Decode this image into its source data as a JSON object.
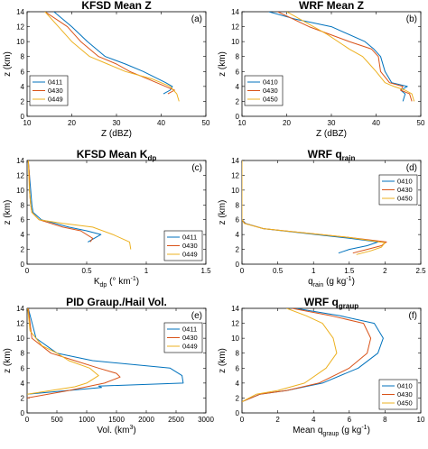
{
  "figure": {
    "colors": {
      "blue": "#0072bd",
      "red": "#d95319",
      "yellow": "#edb120"
    }
  },
  "chart_data": [
    {
      "type": "line",
      "panel_label": "(a)",
      "title": {
        "main": "KFSD Mean Z",
        "sub": "",
        "accent": "macron"
      },
      "xlabel": {
        "pre": "Z (dBZ)",
        "sub": "",
        "post": ""
      },
      "ylabel": "z (km)",
      "xlim": [
        10,
        50
      ],
      "ylim": [
        0,
        14
      ],
      "xticks": [
        10,
        20,
        30,
        40,
        50
      ],
      "yticks": [
        0,
        2,
        4,
        6,
        8,
        10,
        12,
        14
      ],
      "xtick_labels": [
        "10",
        "20",
        "30",
        "40",
        "50"
      ],
      "ytick_labels": [
        "0",
        "2",
        "4",
        "6",
        "8",
        "10",
        "12",
        "14"
      ],
      "legend_position": "bottom-left",
      "series": [
        {
          "name": "0411",
          "color": "#0072bd",
          "x": [
            40.5,
            42,
            42.5,
            41,
            36,
            32,
            27.5,
            23.5,
            20,
            16
          ],
          "y": [
            3,
            3.5,
            4,
            4.5,
            6,
            7,
            8,
            10,
            12,
            14
          ]
        },
        {
          "name": "0430",
          "color": "#d95319",
          "x": [
            41.5,
            43,
            41,
            37,
            33,
            30,
            26,
            22,
            19,
            14
          ],
          "y": [
            3,
            3.5,
            4,
            5,
            6,
            7,
            8,
            10,
            12,
            14
          ]
        },
        {
          "name": "0449",
          "color": "#edb120",
          "x": [
            44,
            43.5,
            42,
            38,
            32,
            28,
            24,
            20,
            17,
            14
          ],
          "y": [
            2,
            3,
            4,
            5,
            6,
            7,
            8,
            10,
            12,
            14
          ]
        }
      ]
    },
    {
      "type": "line",
      "panel_label": "(b)",
      "title": {
        "main": "WRF Mean Z",
        "sub": "",
        "accent": "macron"
      },
      "xlabel": {
        "pre": "Z (dBZ)",
        "sub": "",
        "post": ""
      },
      "ylabel": "z (km)",
      "xlim": [
        10,
        50
      ],
      "ylim": [
        0,
        14
      ],
      "xticks": [
        10,
        20,
        30,
        40,
        50
      ],
      "yticks": [
        0,
        2,
        4,
        6,
        8,
        10,
        12,
        14
      ],
      "xtick_labels": [
        "10",
        "20",
        "30",
        "40",
        "50"
      ],
      "ytick_labels": [
        "0",
        "2",
        "4",
        "6",
        "8",
        "10",
        "12",
        "14"
      ],
      "legend_position": "bottom-left",
      "series": [
        {
          "name": "0410",
          "color": "#0072bd",
          "x": [
            46,
            46.5,
            45.5,
            47,
            43.5,
            42,
            41,
            39.5,
            37.5,
            30,
            22,
            16
          ],
          "y": [
            2,
            3,
            3.5,
            4,
            4.5,
            6,
            8,
            9,
            10,
            12,
            13,
            14
          ]
        },
        {
          "name": "0430",
          "color": "#d95319",
          "x": [
            48,
            47.5,
            45.5,
            46,
            43,
            41,
            40.5,
            39,
            34,
            25,
            18
          ],
          "y": [
            2,
            3,
            3.5,
            4,
            4.5,
            6,
            8,
            9,
            10,
            12,
            14
          ]
        },
        {
          "name": "0450",
          "color": "#edb120",
          "x": [
            48.5,
            48,
            46.5,
            44,
            42,
            40,
            38.5,
            37,
            34,
            29,
            20
          ],
          "y": [
            2,
            3,
            3.5,
            4,
            4.5,
            6,
            7,
            8,
            9,
            11,
            14
          ]
        }
      ]
    },
    {
      "type": "line",
      "panel_label": "(c)",
      "title": {
        "main": "KFSD Mean K",
        "sub": "dp",
        "accent": ""
      },
      "xlabel": {
        "pre": "K",
        "sub": "dp",
        "post": " (° km",
        "sup": "-1",
        "tail": ")"
      },
      "ylabel": "z (km)",
      "xlim": [
        0,
        1.5
      ],
      "ylim": [
        0,
        14
      ],
      "xticks": [
        0,
        0.5,
        1,
        1.5
      ],
      "yticks": [
        0,
        2,
        4,
        6,
        8,
        10,
        12,
        14
      ],
      "xtick_labels": [
        "0",
        "0.5",
        "1",
        "1.5"
      ],
      "ytick_labels": [
        "0",
        "2",
        "4",
        "6",
        "8",
        "10",
        "12",
        "14"
      ],
      "legend_position": "bottom-right",
      "series": [
        {
          "name": "0411",
          "color": "#0072bd",
          "x": [
            0.51,
            0.62,
            0.5,
            0.35,
            0.12,
            0.05,
            0.04,
            0.03,
            0.02,
            0.01
          ],
          "y": [
            3,
            4,
            4.5,
            5,
            6,
            7,
            8,
            10,
            12,
            14
          ]
        },
        {
          "name": "0430",
          "color": "#d95319",
          "x": [
            0.53,
            0.55,
            0.45,
            0.3,
            0.1,
            0.04,
            0.03,
            0.02,
            0.02,
            0.01
          ],
          "y": [
            3,
            3.5,
            4.5,
            5,
            6,
            7,
            8,
            10,
            12,
            14
          ]
        },
        {
          "name": "0449",
          "color": "#edb120",
          "x": [
            0.87,
            0.86,
            0.72,
            0.55,
            0.3,
            0.1,
            0.04,
            0.03,
            0.02,
            0.01
          ],
          "y": [
            2,
            3,
            4,
            5,
            5.5,
            6,
            7,
            8,
            10,
            14
          ]
        }
      ]
    },
    {
      "type": "line",
      "panel_label": "(d)",
      "title": {
        "main": "WRF q",
        "sub": "rain",
        "accent": ""
      },
      "xlabel": {
        "pre": "q",
        "sub": "rain",
        "post": " (g kg",
        "sup": "-1",
        "tail": ")"
      },
      "ylabel": "z (km)",
      "xlim": [
        0,
        2.5
      ],
      "ylim": [
        0,
        14
      ],
      "xticks": [
        0,
        0.5,
        1,
        1.5,
        2,
        2.5
      ],
      "yticks": [
        0,
        2,
        4,
        6,
        8,
        10,
        12,
        14
      ],
      "xtick_labels": [
        "0",
        "0.5",
        "1",
        "1.5",
        "2",
        "2.5"
      ],
      "ytick_labels": [
        "0",
        "2",
        "4",
        "6",
        "8",
        "10",
        "12",
        "14"
      ],
      "legend_position": "top-right",
      "series": [
        {
          "name": "0410",
          "color": "#0072bd",
          "x": [
            1.35,
            1.5,
            1.75,
            1.9,
            1.5,
            0.3,
            0.05,
            0,
            0
          ],
          "y": [
            1.5,
            2,
            2.5,
            3,
            3.5,
            4.8,
            5.5,
            6,
            14
          ]
        },
        {
          "name": "0430",
          "color": "#d95319",
          "x": [
            1.55,
            1.75,
            1.95,
            2.02,
            1.5,
            0.3,
            0.04,
            0,
            0
          ],
          "y": [
            1.5,
            2,
            2.5,
            3,
            3.6,
            4.8,
            5.5,
            6,
            14
          ]
        },
        {
          "name": "0450",
          "color": "#edb120",
          "x": [
            1.6,
            1.8,
            1.95,
            2.0,
            1.5,
            0.3,
            0.03,
            0,
            0
          ],
          "y": [
            1.3,
            1.8,
            2.3,
            2.9,
            3.6,
            4.8,
            5.5,
            6,
            14
          ]
        }
      ]
    },
    {
      "type": "line",
      "panel_label": "(e)",
      "title": {
        "main": "PID Graup./Hail Vol.",
        "sub": "",
        "accent": ""
      },
      "xlabel": {
        "pre": "Vol. (km",
        "sub": "",
        "post": "",
        "sup": "3",
        "tail": ")"
      },
      "ylabel": "z (km)",
      "xlim": [
        0,
        3000
      ],
      "ylim": [
        0,
        14
      ],
      "xticks": [
        0,
        500,
        1000,
        1500,
        2000,
        2500,
        3000
      ],
      "yticks": [
        0,
        2,
        4,
        6,
        8,
        10,
        12,
        14
      ],
      "xtick_labels": [
        "0",
        "500",
        "1000",
        "1500",
        "2000",
        "2500",
        "3000"
      ],
      "ytick_labels": [
        "0",
        "2",
        "4",
        "6",
        "8",
        "10",
        "12",
        "14"
      ],
      "legend_position": "top-right",
      "series": [
        {
          "name": "0411",
          "color": "#0072bd",
          "x": [
            0,
            1250,
            1200,
            2620,
            2600,
            2400,
            1100,
            500,
            150,
            20
          ],
          "y": [
            2.5,
            3.4,
            3.6,
            4,
            5,
            6,
            7,
            8,
            10,
            14
          ]
        },
        {
          "name": "0430",
          "color": "#d95319",
          "x": [
            0,
            700,
            1300,
            1560,
            1500,
            1200,
            800,
            400,
            80,
            20
          ],
          "y": [
            2,
            3,
            4,
            4.8,
            5.3,
            6,
            7,
            8,
            10,
            14
          ]
        },
        {
          "name": "0449",
          "color": "#edb120",
          "x": [
            0,
            800,
            1000,
            1200,
            1050,
            700,
            500,
            250,
            50,
            10
          ],
          "y": [
            2.5,
            3.5,
            4,
            5,
            6,
            7,
            8,
            9,
            11,
            14
          ]
        }
      ]
    },
    {
      "type": "line",
      "panel_label": "(f)",
      "title": {
        "main": "WRF q",
        "sub": "graup",
        "accent": ""
      },
      "xlabel": {
        "pre": "Mean q",
        "sub": "graup",
        "post": " (g kg",
        "sup": "-1",
        "tail": ")"
      },
      "ylabel": "z (km)",
      "xlim": [
        0,
        10
      ],
      "ylim": [
        0,
        14
      ],
      "xticks": [
        0,
        2,
        4,
        6,
        8,
        10
      ],
      "yticks": [
        0,
        2,
        4,
        6,
        8,
        10,
        12,
        14
      ],
      "xtick_labels": [
        "0",
        "2",
        "4",
        "6",
        "8",
        "10"
      ],
      "ytick_labels": [
        "0",
        "2",
        "4",
        "6",
        "8",
        "10",
        "12",
        "14"
      ],
      "legend_position": "bottom-right",
      "series": [
        {
          "name": "0410",
          "color": "#0072bd",
          "x": [
            0,
            1,
            2.5,
            4.5,
            6.5,
            7.6,
            7.9,
            7.4,
            5.5,
            3
          ],
          "y": [
            1.5,
            2.5,
            3,
            4,
            6,
            8,
            10,
            12,
            13,
            14
          ]
        },
        {
          "name": "0430",
          "color": "#d95319",
          "x": [
            0,
            1,
            2.5,
            4.3,
            6,
            7,
            7.2,
            6.8,
            5,
            2.8
          ],
          "y": [
            1.5,
            2.5,
            3,
            4,
            6,
            8,
            10,
            12,
            13,
            14
          ]
        },
        {
          "name": "0450",
          "color": "#edb120",
          "x": [
            0,
            0.8,
            2,
            3.5,
            4.7,
            5.3,
            5.1,
            4.5,
            3.6,
            2.5
          ],
          "y": [
            1.5,
            2.5,
            3,
            4,
            6,
            8,
            10,
            12,
            13,
            14
          ]
        }
      ]
    }
  ]
}
